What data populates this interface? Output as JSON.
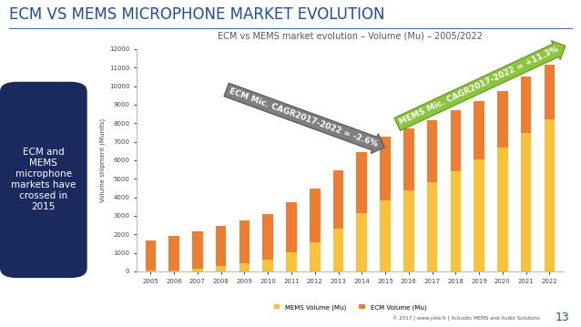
{
  "slide": {
    "header": "ECM VS MEMS MICROPHONE MARKET EVOLUTION",
    "side_note": "ECM and\nMEMS\nmicrophone\nmarkets have\ncrossed in\n2015",
    "footer": "© 2017 | www.yole.fr | Acoustic MEMS and Audio Solutions",
    "page": "13"
  },
  "chart_data": {
    "type": "bar",
    "stacked": true,
    "title": "ECM vs MEMS market evolution – Volume (Mu) – 2005/2022",
    "y_label": "Volume shipment (Munits)",
    "categories": [
      "2005",
      "2006",
      "2007",
      "2008",
      "2009",
      "2010",
      "2011",
      "2012",
      "2013",
      "2014",
      "2015",
      "2016",
      "2017",
      "2018",
      "2019",
      "2020",
      "2021",
      "2022"
    ],
    "series": [
      {
        "name": "MEMS Volume (Mu)",
        "color": "#f8c23a",
        "values": [
          30,
          60,
          150,
          280,
          420,
          620,
          1050,
          1550,
          2300,
          3150,
          3850,
          4350,
          4800,
          5400,
          6050,
          6700,
          7450,
          8200
        ]
      },
      {
        "name": "ECM Volume (Mu)",
        "color": "#ed7d31",
        "values": [
          1620,
          1840,
          2000,
          2200,
          2330,
          2460,
          2670,
          2900,
          3150,
          3300,
          3400,
          3350,
          3350,
          3300,
          3150,
          3050,
          3050,
          2950
        ]
      }
    ],
    "ylim": [
      0,
      12000
    ],
    "yticks": [
      0,
      1000,
      2000,
      3000,
      4000,
      5000,
      6000,
      7000,
      8000,
      9000,
      10000,
      11000,
      12000
    ],
    "grid": false,
    "legend": "lower center",
    "annotations": [
      "ECM Mic. CAGR2017-2022 = -2.6%",
      "MEMS Mic. CAGR2017-2022 = +11.3%"
    ]
  }
}
